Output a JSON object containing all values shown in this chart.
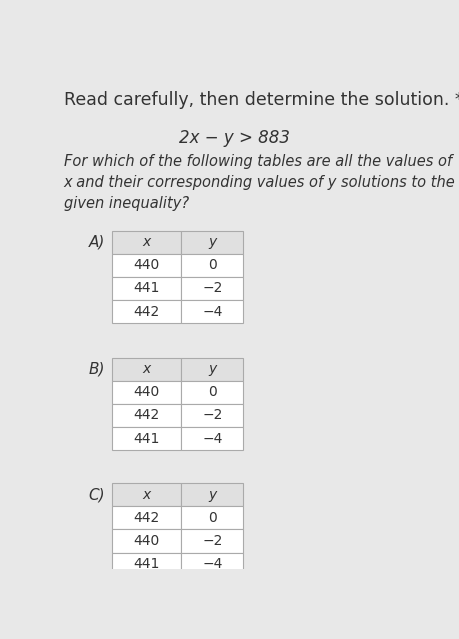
{
  "title": "Read carefully, then determine the solution. *",
  "inequality": "2x − y > 883",
  "question": "For which of the following tables are all the values of\nx and their corresponding values of y solutions to the\ngiven inequality?",
  "tables": [
    {
      "label": "A)",
      "headers": [
        "x",
        "y"
      ],
      "rows": [
        [
          "440",
          "0"
        ],
        [
          "441",
          "−2"
        ],
        [
          "442",
          "−4"
        ]
      ]
    },
    {
      "label": "B)",
      "headers": [
        "x",
        "y"
      ],
      "rows": [
        [
          "440",
          "0"
        ],
        [
          "442",
          "−2"
        ],
        [
          "441",
          "−4"
        ]
      ]
    },
    {
      "label": "C)",
      "headers": [
        "x",
        "y"
      ],
      "rows": [
        [
          "442",
          "0"
        ],
        [
          "440",
          "−2"
        ],
        [
          "441",
          "−4"
        ]
      ]
    }
  ],
  "bg_color": "#e8e8e8",
  "cell_bg": "#ffffff",
  "header_bg": "#e0e0e0",
  "border_color": "#aaaaaa",
  "text_color": "#333333"
}
